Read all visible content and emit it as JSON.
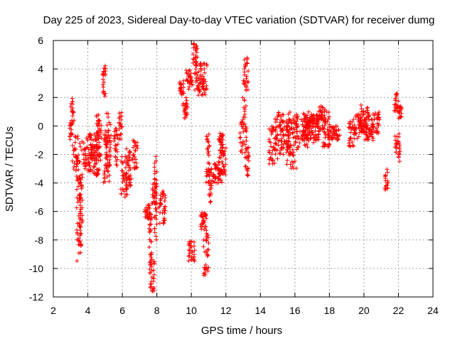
{
  "chart_data": {
    "type": "scatter",
    "title": "Day 225 of 2023, Sidereal Day-to-day VTEC variation (SDTVAR) for receiver dumg",
    "xlabel": "GPS time / hours",
    "ylabel": "SDTVAR / TECUs",
    "xlim": [
      2,
      24
    ],
    "ylim": [
      -12,
      6
    ],
    "xticks": [
      "2",
      "4",
      "6",
      "8",
      "10",
      "12",
      "14",
      "16",
      "18",
      "20",
      "22",
      "24"
    ],
    "yticks": [
      "6",
      "4",
      "2",
      "0",
      "-2",
      "-4",
      "-6",
      "-8",
      "-10",
      "-12"
    ],
    "grid": true,
    "marker": "+",
    "color": "#ff0000",
    "series": [
      {
        "name": "SDTVAR",
        "segments": [
          [
            2.95,
            3.05,
            -1.0,
            0.4
          ],
          [
            3.0,
            3.2,
            0.0,
            2.0
          ],
          [
            3.1,
            3.45,
            -3.5,
            -0.5
          ],
          [
            3.35,
            3.6,
            -9.5,
            -3.5
          ],
          [
            3.5,
            3.7,
            -8.5,
            -1.0
          ],
          [
            3.7,
            4.5,
            -3.0,
            -0.5
          ],
          [
            4.0,
            4.6,
            -3.5,
            -1.0
          ],
          [
            4.4,
            4.7,
            -3.5,
            1.0
          ],
          [
            4.6,
            4.8,
            -2.5,
            0.5
          ],
          [
            4.85,
            5.05,
            2.0,
            4.3
          ],
          [
            4.9,
            5.3,
            -4.0,
            -0.5
          ],
          [
            5.0,
            5.35,
            -3.0,
            1.0
          ],
          [
            5.5,
            5.75,
            -3.0,
            0.0
          ],
          [
            5.8,
            6.0,
            -1.0,
            1.0
          ],
          [
            5.9,
            6.3,
            -5.0,
            -2.0
          ],
          [
            6.2,
            6.6,
            -4.5,
            -1.5
          ],
          [
            6.6,
            6.9,
            -3.0,
            -1.0
          ],
          [
            7.3,
            7.6,
            -6.5,
            -5.5
          ],
          [
            7.55,
            7.7,
            -10.5,
            -6.0
          ],
          [
            7.6,
            7.9,
            -11.8,
            -9.0
          ],
          [
            7.7,
            8.0,
            -5.5,
            -4.0
          ],
          [
            7.85,
            8.0,
            -8.0,
            -2.0
          ],
          [
            8.1,
            8.5,
            -7.0,
            -4.5
          ],
          [
            9.3,
            9.6,
            2.0,
            3.2
          ],
          [
            9.5,
            9.8,
            0.5,
            2.0
          ],
          [
            9.7,
            10.1,
            2.5,
            4.0
          ],
          [
            9.8,
            10.2,
            -9.5,
            -8.0
          ],
          [
            10.05,
            10.35,
            4.0,
            5.8
          ],
          [
            10.2,
            10.6,
            2.5,
            4.5
          ],
          [
            10.4,
            10.9,
            2.0,
            4.5
          ],
          [
            10.5,
            10.9,
            -7.5,
            -6.0
          ],
          [
            10.7,
            11.0,
            -10.5,
            -7.5
          ],
          [
            10.85,
            11.05,
            -4.0,
            -0.5
          ],
          [
            11.0,
            11.3,
            -5.5,
            -3.0
          ],
          [
            11.3,
            11.8,
            -4.0,
            -2.5
          ],
          [
            11.55,
            11.85,
            -1.5,
            -0.5
          ],
          [
            11.6,
            12.1,
            -3.5,
            -1.5
          ],
          [
            12.8,
            13.2,
            -2.0,
            2.0
          ],
          [
            13.0,
            13.3,
            2.5,
            5.0
          ],
          [
            13.1,
            13.35,
            -3.5,
            -1.5
          ],
          [
            14.5,
            15.0,
            -3.0,
            0.0
          ],
          [
            14.8,
            15.4,
            -2.0,
            1.0
          ],
          [
            15.2,
            15.8,
            -2.0,
            0.5
          ],
          [
            15.5,
            16.2,
            -3.0,
            1.0
          ],
          [
            16.0,
            16.8,
            -1.5,
            0.5
          ],
          [
            16.4,
            17.2,
            -1.0,
            1.0
          ],
          [
            16.8,
            17.4,
            -1.2,
            0.8
          ],
          [
            17.2,
            17.8,
            -0.5,
            1.5
          ],
          [
            17.6,
            18.0,
            -1.5,
            1.0
          ],
          [
            17.9,
            18.6,
            -1.0,
            0.0
          ],
          [
            19.1,
            19.5,
            -1.5,
            0.5
          ],
          [
            19.4,
            19.9,
            -1.0,
            1.0
          ],
          [
            19.8,
            20.3,
            -0.5,
            1.5
          ],
          [
            20.0,
            20.6,
            -1.0,
            0.5
          ],
          [
            20.5,
            20.9,
            -0.5,
            1.0
          ],
          [
            21.2,
            21.4,
            -4.5,
            -3.0
          ],
          [
            21.75,
            22.0,
            1.0,
            2.3
          ],
          [
            21.8,
            22.1,
            -2.5,
            -0.5
          ],
          [
            22.0,
            22.2,
            0.5,
            1.5
          ]
        ]
      }
    ]
  }
}
